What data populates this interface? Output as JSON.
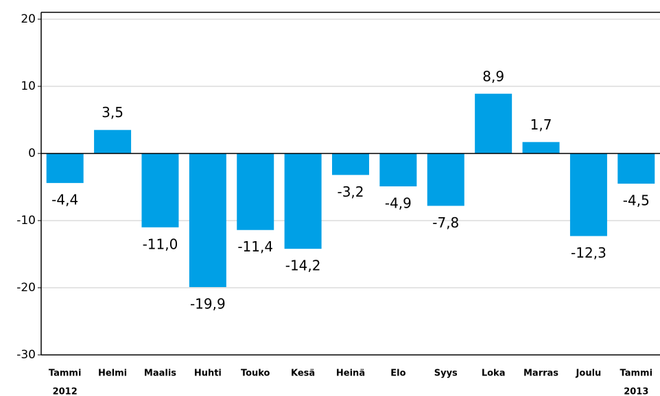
{
  "chart_data": {
    "type": "bar",
    "categories": [
      "Tammi",
      "Helmi",
      "Maalis",
      "Huhti",
      "Touko",
      "Kesä",
      "Heinä",
      "Elo",
      "Syys",
      "Loka",
      "Marras",
      "Joulu",
      "Tammi"
    ],
    "x_sublabels": [
      "2012",
      null,
      null,
      null,
      null,
      null,
      null,
      null,
      null,
      null,
      null,
      null,
      "2013"
    ],
    "values": [
      -4.4,
      3.5,
      -11.0,
      -19.9,
      -11.4,
      -14.2,
      -3.2,
      -4.9,
      -7.8,
      8.9,
      1.7,
      -12.3,
      -4.5
    ],
    "value_labels": [
      "-4,4",
      "3,5",
      "-11,0",
      "-19,9",
      "-11,4",
      "-14,2",
      "-3,2",
      "-4,9",
      "-7,8",
      "8,9",
      "1,7",
      "-12,3",
      "-4,5"
    ],
    "color": "#00a0e6",
    "ylim": [
      -30,
      20
    ],
    "yticks": [
      -30,
      -20,
      -10,
      0,
      10,
      20
    ],
    "grid": true
  }
}
